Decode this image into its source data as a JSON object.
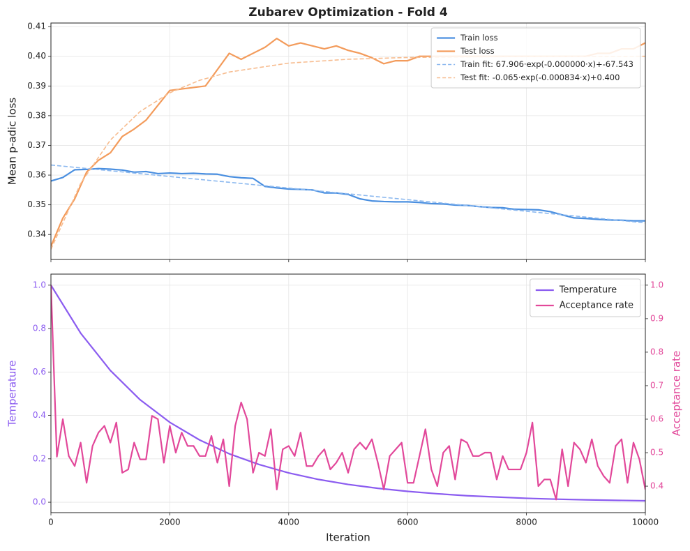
{
  "chart_data": [
    {
      "type": "line",
      "title": "Zubarev Optimization - Fold 4",
      "ylabel": "Mean p-adic loss",
      "xlim": [
        0,
        10000
      ],
      "xticks": [
        0,
        2000,
        4000,
        6000,
        8000,
        10000
      ],
      "show_xtick_labels": false,
      "ylim": [
        0.3316,
        0.4112
      ],
      "yticks": [
        0.34,
        0.35,
        0.36,
        0.37,
        0.38,
        0.39,
        {
          "value": 0.4,
          "label": "0.40"
        },
        0.41
      ],
      "grid": true,
      "legend": "upper right",
      "series": [
        {
          "name": "Train loss",
          "color": "#4a8fe0",
          "linestyle": "solid",
          "x": [
            0,
            200,
            400,
            600,
            800,
            1000,
            1200,
            1400,
            1600,
            1800,
            2000,
            2200,
            2400,
            2600,
            2800,
            3000,
            3200,
            3400,
            3600,
            3800,
            4000,
            4200,
            4400,
            4600,
            4800,
            5000,
            5200,
            5400,
            5600,
            5800,
            6000,
            6200,
            6400,
            6600,
            6800,
            7000,
            7200,
            7400,
            7600,
            7800,
            8000,
            8200,
            8400,
            8600,
            8800,
            9000,
            9200,
            9400,
            9600,
            9800,
            10000
          ],
          "values": [
            0.358,
            0.3592,
            0.3618,
            0.3619,
            0.3622,
            0.362,
            0.3617,
            0.361,
            0.3612,
            0.3605,
            0.3607,
            0.3605,
            0.3606,
            0.3604,
            0.3603,
            0.3595,
            0.3591,
            0.3589,
            0.3562,
            0.3557,
            0.3553,
            0.3552,
            0.355,
            0.354,
            0.354,
            0.3535,
            0.352,
            0.3513,
            0.3511,
            0.351,
            0.351,
            0.3508,
            0.3504,
            0.3503,
            0.3499,
            0.3498,
            0.3494,
            0.3491,
            0.349,
            0.3485,
            0.3484,
            0.3483,
            0.3477,
            0.3466,
            0.3456,
            0.3454,
            0.3451,
            0.3449,
            0.3448,
            0.3446,
            0.3446
          ]
        },
        {
          "name": "Test loss",
          "color": "#f39b5b",
          "linestyle": "solid",
          "x": [
            0,
            200,
            400,
            600,
            800,
            1000,
            1200,
            1400,
            1600,
            1800,
            2000,
            2200,
            2400,
            2600,
            2800,
            3000,
            3200,
            3400,
            3600,
            3800,
            4000,
            4200,
            4400,
            4600,
            4800,
            5000,
            5200,
            5400,
            5600,
            5800,
            6000,
            6200,
            6400,
            6600,
            6800,
            7000,
            7200,
            7400,
            7600,
            7800,
            8000,
            8200,
            8400,
            8600,
            8800,
            9000,
            9200,
            9400,
            9600,
            9800,
            10000
          ],
          "values": [
            0.336,
            0.3455,
            0.352,
            0.361,
            0.365,
            0.3675,
            0.373,
            0.3755,
            0.3785,
            0.3835,
            0.3885,
            0.389,
            0.3895,
            0.39,
            0.3955,
            0.401,
            0.399,
            0.401,
            0.403,
            0.406,
            0.4035,
            0.4045,
            0.4035,
            0.4025,
            0.4035,
            0.402,
            0.401,
            0.3995,
            0.3975,
            0.3985,
            0.3985,
            0.4,
            0.4,
            0.4,
            0.4,
            0.4,
            0.4,
            0.4,
            0.4,
            0.4,
            0.4,
            0.4,
            0.4,
            0.4,
            0.4,
            0.4,
            0.401,
            0.401,
            0.4025,
            0.4025,
            0.4045
          ]
        },
        {
          "name": "Train fit: 67.906·exp(-0.000000·x)+-67.543",
          "color": "#8bb8ef",
          "linestyle": "dashed",
          "x": [
            0,
            5000,
            10000
          ],
          "values": [
            0.3634,
            0.3537,
            0.3439
          ]
        },
        {
          "name": "Test fit: -0.065·exp(-0.000834·x)+0.400",
          "color": "#f7bc8f",
          "linestyle": "dashed",
          "x": [
            0,
            500,
            1000,
            1500,
            2000,
            2500,
            3000,
            4000,
            5000,
            6000,
            7000,
            8000,
            10000
          ],
          "values": [
            0.335,
            0.3572,
            0.3718,
            0.3814,
            0.3877,
            0.3919,
            0.3947,
            0.3977,
            0.399,
            0.3996,
            0.3998,
            0.3999,
            0.4
          ]
        }
      ]
    },
    {
      "type": "line",
      "xlabel": "Iteration",
      "ylabel": "Temperature",
      "y2label": "Acceptance rate",
      "xlim": [
        0,
        10000
      ],
      "xticks": [
        0,
        2000,
        4000,
        6000,
        8000,
        10000
      ],
      "show_xtick_labels": true,
      "ylim": [
        -0.048,
        1.051
      ],
      "yticks": [
        {
          "value": 0,
          "label": "0.0"
        },
        0.2,
        0.4,
        0.6,
        0.8,
        {
          "value": 1,
          "label": "1.0"
        }
      ],
      "y2lim": [
        0.321,
        1.033
      ],
      "y2ticks": [
        0.4,
        0.5,
        0.6,
        0.7,
        0.8,
        0.9,
        {
          "value": 1,
          "label": "1.0"
        }
      ],
      "grid": true,
      "legend": "upper right",
      "series": [
        {
          "name": "Temperature",
          "color": "#8b5cf0",
          "linestyle": "solid",
          "axis": "y",
          "x": [
            0,
            500,
            1000,
            1500,
            2000,
            2500,
            3000,
            3500,
            4000,
            4500,
            5000,
            5500,
            6000,
            6500,
            7000,
            7500,
            8000,
            8500,
            9000,
            9500,
            10000
          ],
          "values": [
            1,
            0.779,
            0.607,
            0.472,
            0.368,
            0.287,
            0.223,
            0.174,
            0.135,
            0.105,
            0.082,
            0.064,
            0.05,
            0.039,
            0.03,
            0.024,
            0.018,
            0.014,
            0.011,
            0.0087,
            0.0067
          ]
        },
        {
          "name": "Acceptance rate",
          "color": "#e2489a",
          "linestyle": "solid",
          "axis": "y2",
          "x": [
            0,
            100,
            200,
            300,
            400,
            500,
            600,
            700,
            800,
            900,
            1000,
            1100,
            1200,
            1300,
            1400,
            1500,
            1600,
            1700,
            1800,
            1900,
            2000,
            2100,
            2200,
            2300,
            2400,
            2500,
            2600,
            2700,
            2800,
            2900,
            3000,
            3100,
            3200,
            3300,
            3400,
            3500,
            3600,
            3700,
            3800,
            3900,
            4000,
            4100,
            4200,
            4300,
            4400,
            4500,
            4600,
            4700,
            4800,
            4900,
            5000,
            5100,
            5200,
            5300,
            5400,
            5500,
            5600,
            5700,
            5800,
            5900,
            6000,
            6100,
            6200,
            6300,
            6400,
            6500,
            6600,
            6700,
            6800,
            6900,
            7000,
            7100,
            7200,
            7300,
            7400,
            7500,
            7600,
            7700,
            7800,
            7900,
            8000,
            8100,
            8200,
            8300,
            8400,
            8500,
            8600,
            8700,
            8800,
            8900,
            9000,
            9100,
            9200,
            9300,
            9400,
            9500,
            9600,
            9700,
            9800,
            9900,
            10000
          ],
          "values": [
            1.0,
            0.488,
            0.6,
            0.49,
            0.46,
            0.53,
            0.41,
            0.52,
            0.56,
            0.58,
            0.53,
            0.59,
            0.44,
            0.45,
            0.53,
            0.48,
            0.48,
            0.61,
            0.6,
            0.47,
            0.58,
            0.5,
            0.56,
            0.52,
            0.52,
            0.49,
            0.49,
            0.55,
            0.47,
            0.54,
            0.4,
            0.58,
            0.65,
            0.6,
            0.44,
            0.5,
            0.49,
            0.57,
            0.39,
            0.51,
            0.52,
            0.49,
            0.56,
            0.46,
            0.46,
            0.49,
            0.51,
            0.45,
            0.47,
            0.5,
            0.44,
            0.51,
            0.53,
            0.51,
            0.54,
            0.47,
            0.39,
            0.49,
            0.51,
            0.53,
            0.41,
            0.41,
            0.49,
            0.57,
            0.45,
            0.4,
            0.5,
            0.52,
            0.42,
            0.54,
            0.53,
            0.49,
            0.49,
            0.5,
            0.5,
            0.42,
            0.49,
            0.45,
            0.45,
            0.45,
            0.5,
            0.59,
            0.4,
            0.42,
            0.42,
            0.36,
            0.51,
            0.4,
            0.53,
            0.51,
            0.47,
            0.54,
            0.46,
            0.43,
            0.41,
            0.52,
            0.54,
            0.41,
            0.53,
            0.48,
            0.39
          ]
        }
      ]
    }
  ]
}
